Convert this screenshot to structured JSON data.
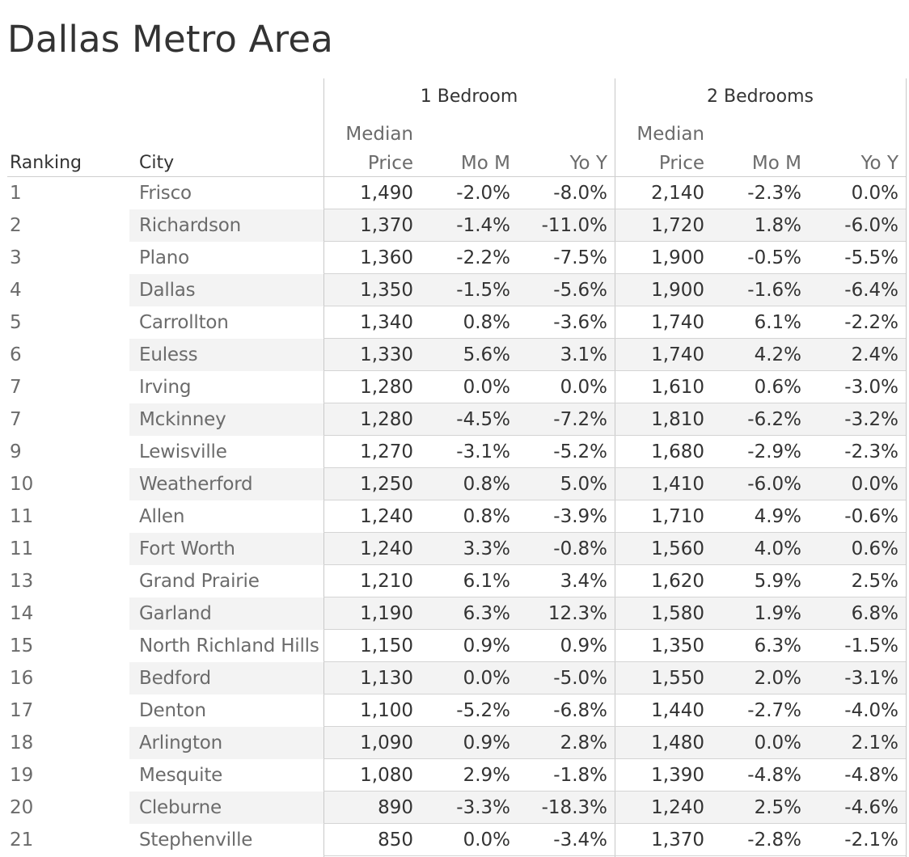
{
  "title": "Dallas Metro Area",
  "chart_data": {
    "type": "table",
    "groups": [
      "1 Bedroom",
      "2 Bedrooms"
    ],
    "columns": {
      "ranking": "Ranking",
      "city": "City",
      "median_top": "Median",
      "median_bottom": "Price",
      "mom": "Mo M",
      "yoy": "Yo Y"
    },
    "rows": [
      {
        "rank": "1",
        "city": "Frisco",
        "b1_price": "1,490",
        "b1_mom": "-2.0%",
        "b1_yoy": "-8.0%",
        "b2_price": "2,140",
        "b2_mom": "-2.3%",
        "b2_yoy": "0.0%"
      },
      {
        "rank": "2",
        "city": "Richardson",
        "b1_price": "1,370",
        "b1_mom": "-1.4%",
        "b1_yoy": "-11.0%",
        "b2_price": "1,720",
        "b2_mom": "1.8%",
        "b2_yoy": "-6.0%"
      },
      {
        "rank": "3",
        "city": "Plano",
        "b1_price": "1,360",
        "b1_mom": "-2.2%",
        "b1_yoy": "-7.5%",
        "b2_price": "1,900",
        "b2_mom": "-0.5%",
        "b2_yoy": "-5.5%"
      },
      {
        "rank": "4",
        "city": "Dallas",
        "b1_price": "1,350",
        "b1_mom": "-1.5%",
        "b1_yoy": "-5.6%",
        "b2_price": "1,900",
        "b2_mom": "-1.6%",
        "b2_yoy": "-6.4%"
      },
      {
        "rank": "5",
        "city": "Carrollton",
        "b1_price": "1,340",
        "b1_mom": "0.8%",
        "b1_yoy": "-3.6%",
        "b2_price": "1,740",
        "b2_mom": "6.1%",
        "b2_yoy": "-2.2%"
      },
      {
        "rank": "6",
        "city": "Euless",
        "b1_price": "1,330",
        "b1_mom": "5.6%",
        "b1_yoy": "3.1%",
        "b2_price": "1,740",
        "b2_mom": "4.2%",
        "b2_yoy": "2.4%"
      },
      {
        "rank": "7",
        "city": "Irving",
        "b1_price": "1,280",
        "b1_mom": "0.0%",
        "b1_yoy": "0.0%",
        "b2_price": "1,610",
        "b2_mom": "0.6%",
        "b2_yoy": "-3.0%"
      },
      {
        "rank": "7",
        "city": "Mckinney",
        "b1_price": "1,280",
        "b1_mom": "-4.5%",
        "b1_yoy": "-7.2%",
        "b2_price": "1,810",
        "b2_mom": "-6.2%",
        "b2_yoy": "-3.2%"
      },
      {
        "rank": "9",
        "city": "Lewisville",
        "b1_price": "1,270",
        "b1_mom": "-3.1%",
        "b1_yoy": "-5.2%",
        "b2_price": "1,680",
        "b2_mom": "-2.9%",
        "b2_yoy": "-2.3%"
      },
      {
        "rank": "10",
        "city": "Weatherford",
        "b1_price": "1,250",
        "b1_mom": "0.8%",
        "b1_yoy": "5.0%",
        "b2_price": "1,410",
        "b2_mom": "-6.0%",
        "b2_yoy": "0.0%"
      },
      {
        "rank": "11",
        "city": "Allen",
        "b1_price": "1,240",
        "b1_mom": "0.8%",
        "b1_yoy": "-3.9%",
        "b2_price": "1,710",
        "b2_mom": "4.9%",
        "b2_yoy": "-0.6%"
      },
      {
        "rank": "11",
        "city": "Fort Worth",
        "b1_price": "1,240",
        "b1_mom": "3.3%",
        "b1_yoy": "-0.8%",
        "b2_price": "1,560",
        "b2_mom": "4.0%",
        "b2_yoy": "0.6%"
      },
      {
        "rank": "13",
        "city": "Grand Prairie",
        "b1_price": "1,210",
        "b1_mom": "6.1%",
        "b1_yoy": "3.4%",
        "b2_price": "1,620",
        "b2_mom": "5.9%",
        "b2_yoy": "2.5%"
      },
      {
        "rank": "14",
        "city": "Garland",
        "b1_price": "1,190",
        "b1_mom": "6.3%",
        "b1_yoy": "12.3%",
        "b2_price": "1,580",
        "b2_mom": "1.9%",
        "b2_yoy": "6.8%"
      },
      {
        "rank": "15",
        "city": "North Richland Hills",
        "b1_price": "1,150",
        "b1_mom": "0.9%",
        "b1_yoy": "0.9%",
        "b2_price": "1,350",
        "b2_mom": "6.3%",
        "b2_yoy": "-1.5%"
      },
      {
        "rank": "16",
        "city": "Bedford",
        "b1_price": "1,130",
        "b1_mom": "0.0%",
        "b1_yoy": "-5.0%",
        "b2_price": "1,550",
        "b2_mom": "2.0%",
        "b2_yoy": "-3.1%"
      },
      {
        "rank": "17",
        "city": "Denton",
        "b1_price": "1,100",
        "b1_mom": "-5.2%",
        "b1_yoy": "-6.8%",
        "b2_price": "1,440",
        "b2_mom": "-2.7%",
        "b2_yoy": "-4.0%"
      },
      {
        "rank": "18",
        "city": "Arlington",
        "b1_price": "1,090",
        "b1_mom": "0.9%",
        "b1_yoy": "2.8%",
        "b2_price": "1,480",
        "b2_mom": "0.0%",
        "b2_yoy": "2.1%"
      },
      {
        "rank": "19",
        "city": "Mesquite",
        "b1_price": "1,080",
        "b1_mom": "2.9%",
        "b1_yoy": "-1.8%",
        "b2_price": "1,390",
        "b2_mom": "-4.8%",
        "b2_yoy": "-4.8%"
      },
      {
        "rank": "20",
        "city": "Cleburne",
        "b1_price": "890",
        "b1_mom": "-3.3%",
        "b1_yoy": "-18.3%",
        "b2_price": "1,240",
        "b2_mom": "2.5%",
        "b2_yoy": "-4.6%"
      },
      {
        "rank": "21",
        "city": "Stephenville",
        "b1_price": "850",
        "b1_mom": "0.0%",
        "b1_yoy": "-3.4%",
        "b2_price": "1,370",
        "b2_mom": "-2.8%",
        "b2_yoy": "-2.1%"
      }
    ]
  }
}
